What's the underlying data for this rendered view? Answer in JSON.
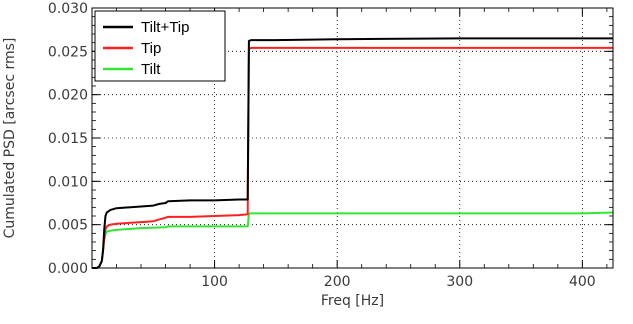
{
  "chart_data": {
    "type": "line",
    "title": "",
    "xlabel": "Freq [Hz]",
    "ylabel": "Cumulated PSD [arcsec rms]",
    "xlim": [
      0,
      425
    ],
    "ylim": [
      0,
      0.03
    ],
    "x_ticks": [
      100,
      200,
      300,
      400
    ],
    "x_tick_labels": [
      "100",
      "200",
      "300",
      "400"
    ],
    "y_ticks": [
      0.0,
      0.005,
      0.01,
      0.015,
      0.02,
      0.025,
      0.03
    ],
    "y_tick_labels": [
      "0.000",
      "0.005",
      "0.010",
      "0.015",
      "0.020",
      "0.025",
      "0.030"
    ],
    "grid": true,
    "legend_position": "top-left",
    "series": [
      {
        "name": "Tilt+Tip",
        "color": "#000000",
        "x": [
          0,
          4,
          6,
          8,
          9,
          10,
          11,
          12,
          15,
          20,
          30,
          40,
          50,
          55,
          60,
          62,
          80,
          100,
          120,
          127,
          128,
          130,
          150,
          200,
          300,
          400,
          425
        ],
        "y": [
          0.0,
          0.0,
          0.0002,
          0.0008,
          0.002,
          0.0045,
          0.006,
          0.0064,
          0.0067,
          0.0069,
          0.007,
          0.0071,
          0.0072,
          0.0074,
          0.0075,
          0.0077,
          0.0078,
          0.0078,
          0.0079,
          0.0079,
          0.0262,
          0.0263,
          0.0263,
          0.0264,
          0.0265,
          0.0265,
          0.0265
        ]
      },
      {
        "name": "Tip",
        "color": "#ff2020",
        "x": [
          0,
          4,
          6,
          8,
          9,
          10,
          11,
          12,
          15,
          20,
          30,
          40,
          50,
          55,
          60,
          62,
          80,
          100,
          120,
          127,
          128,
          130,
          150,
          200,
          300,
          400,
          425
        ],
        "y": [
          0.0,
          0.0,
          0.0002,
          0.0008,
          0.002,
          0.0035,
          0.0045,
          0.0048,
          0.005,
          0.0051,
          0.0052,
          0.0053,
          0.0054,
          0.0056,
          0.0058,
          0.0059,
          0.0059,
          0.006,
          0.0061,
          0.0062,
          0.0253,
          0.0254,
          0.0254,
          0.0254,
          0.0254,
          0.0254,
          0.0254
        ]
      },
      {
        "name": "Tilt",
        "color": "#33e633",
        "x": [
          0,
          4,
          6,
          8,
          9,
          10,
          11,
          12,
          15,
          20,
          40,
          60,
          62,
          100,
          127,
          128,
          200,
          300,
          400,
          425
        ],
        "y": [
          0.0,
          0.0,
          0.0002,
          0.0008,
          0.002,
          0.0032,
          0.0039,
          0.0042,
          0.0043,
          0.0044,
          0.0046,
          0.0047,
          0.0048,
          0.0048,
          0.0048,
          0.0063,
          0.0063,
          0.0063,
          0.0063,
          0.0064
        ]
      }
    ]
  }
}
